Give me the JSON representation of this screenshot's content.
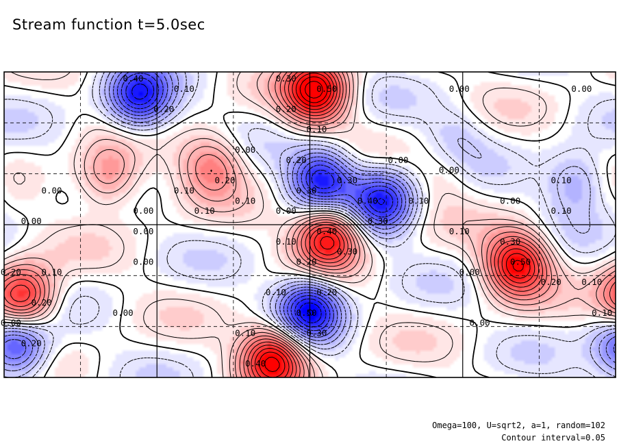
{
  "title": "Stream function t=5.0sec",
  "footer": {
    "params": "Omega=100, U=sqrt2, a=1, random=102",
    "interval": "Contour interval=0.05"
  },
  "colors": {
    "positive": "#ff0000",
    "negative": "#0000ff",
    "zero": "#ffffff",
    "frame": "#000000"
  },
  "chart_data": {
    "type": "heatmap",
    "title": "Stream function t=5.0sec",
    "xlabel": "",
    "ylabel": "",
    "grid": true,
    "contour_interval": 0.05,
    "value_range": [
      -0.5,
      0.55
    ],
    "colormap": "blue-white-red",
    "negative_contours": "dashed",
    "features": [
      {
        "x": 0.22,
        "y": 0.92,
        "value": -0.45
      },
      {
        "x": 0.17,
        "y": 0.66,
        "value": 0.25
      },
      {
        "x": 0.34,
        "y": 0.7,
        "value": 0.25
      },
      {
        "x": 0.51,
        "y": 0.94,
        "value": 0.55
      },
      {
        "x": 0.52,
        "y": 0.65,
        "value": -0.45
      },
      {
        "x": 0.62,
        "y": 0.58,
        "value": -0.42
      },
      {
        "x": 0.53,
        "y": 0.46,
        "value": 0.5
      },
      {
        "x": 0.5,
        "y": 0.22,
        "value": -0.48
      },
      {
        "x": 0.44,
        "y": 0.06,
        "value": 0.52
      },
      {
        "x": 0.84,
        "y": 0.37,
        "value": 0.5
      },
      {
        "x": 0.03,
        "y": 0.26,
        "value": 0.45
      },
      {
        "x": 0.02,
        "y": 0.1,
        "value": -0.38
      },
      {
        "x": 0.74,
        "y": 0.79,
        "value": -0.1
      },
      {
        "x": 0.72,
        "y": 0.67,
        "value": 0.08
      },
      {
        "x": 0.94,
        "y": 0.64,
        "value": -0.2
      }
    ],
    "contour_labels": [
      "0.40",
      "0.30",
      "0.20",
      "0.10",
      "0.00",
      "0.00",
      "0.20",
      "0.20",
      "0.30",
      "0.30",
      "0.10",
      "0.40",
      "0.50",
      "0.30",
      "0.40",
      "0.00",
      "0.30",
      "0.00",
      "0.00",
      "0.20",
      "0.10",
      "0.00",
      "0.10",
      "0.10",
      "0.20",
      "0.10",
      "0.00",
      "0.10",
      "0.00",
      "0.00",
      "0.10",
      "0.00",
      "0.50",
      "0.00",
      "0.20",
      "0.10",
      "0.20",
      "0.10",
      "0.30",
      "0.40",
      "0.00",
      "0.20",
      "0.10",
      "0.00",
      "0.10",
      "0.10",
      "0.20",
      "0.30",
      "0.40",
      "0.50",
      "0.20",
      "0.00",
      "0.10",
      "0.00",
      "0.00",
      "0.10"
    ]
  }
}
